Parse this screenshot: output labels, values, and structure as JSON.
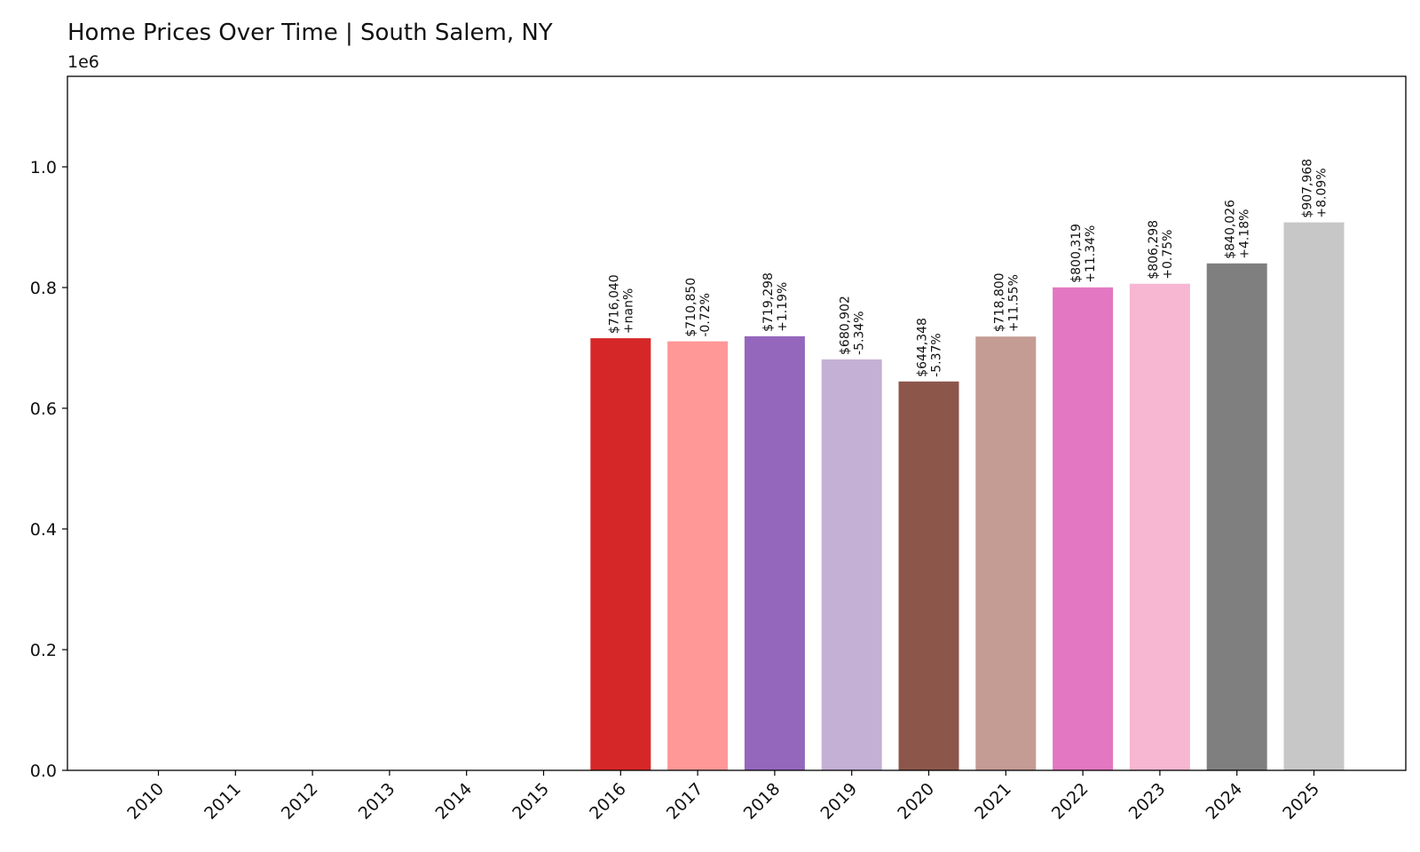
{
  "chart_data": {
    "type": "bar",
    "title": "Home Prices Over Time | South Salem, NY",
    "axis_offset_label": "1e6",
    "xlabel": "",
    "ylabel": "",
    "categories": [
      "2010",
      "2011",
      "2012",
      "2013",
      "2014",
      "2015",
      "2016",
      "2017",
      "2018",
      "2019",
      "2020",
      "2021",
      "2022",
      "2023",
      "2024",
      "2025"
    ],
    "values": [
      0,
      0,
      0,
      0,
      0,
      0,
      716040,
      710850,
      719298,
      680902,
      644348,
      718800,
      800319,
      806298,
      840026,
      907968
    ],
    "value_labels": [
      "",
      "",
      "",
      "",
      "",
      "",
      "$716,040",
      "$710,850",
      "$719,298",
      "$680,902",
      "$644,348",
      "$718,800",
      "$800,319",
      "$806,298",
      "$840,026",
      "$907,968"
    ],
    "change_labels": [
      "",
      "",
      "",
      "",
      "",
      "",
      "+nan%",
      "-0.72%",
      "+1.19%",
      "-5.34%",
      "-5.37%",
      "+11.55%",
      "+11.34%",
      "+0.75%",
      "+4.18%",
      "+8.09%"
    ],
    "colors": [
      "#1f77b4",
      "#aec7e8",
      "#ff7f0e",
      "#ffbb78",
      "#2ca02c",
      "#98df8a",
      "#d62728",
      "#ff9896",
      "#9467bd",
      "#c5b0d5",
      "#8c564b",
      "#c49c94",
      "#e377c2",
      "#f7b6d2",
      "#7f7f7f",
      "#c7c7c7"
    ],
    "yticks": [
      0.0,
      0.2,
      0.4,
      0.6,
      0.8,
      1.0
    ],
    "ytick_labels": [
      "0.0",
      "0.2",
      "0.4",
      "0.6",
      "0.8",
      "1.0"
    ],
    "ylim": [
      0,
      1150000
    ],
    "grid": false,
    "legend": "none"
  }
}
